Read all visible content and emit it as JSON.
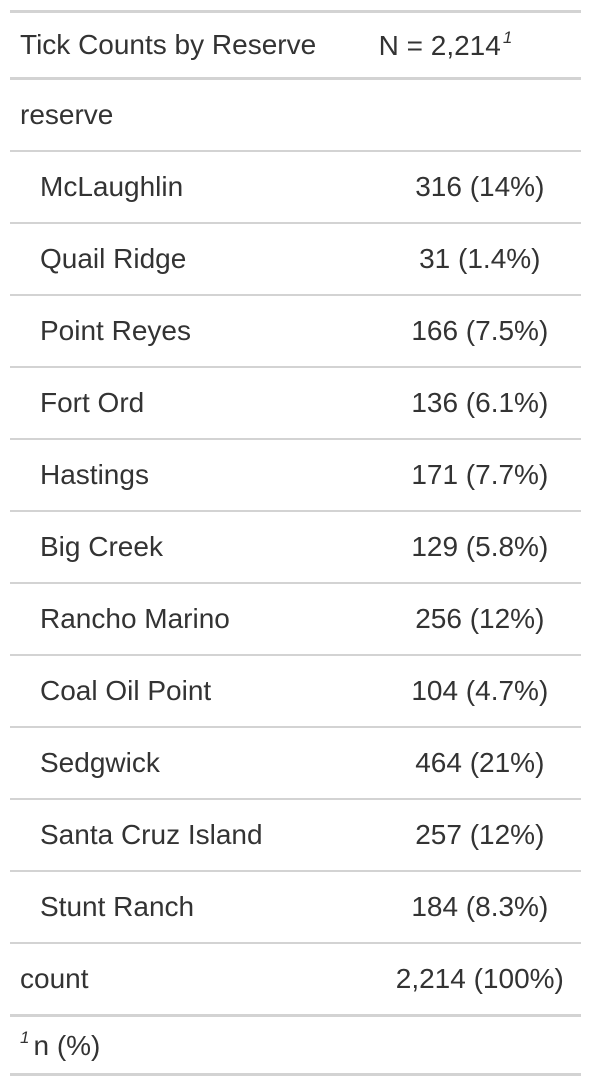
{
  "table": {
    "header": {
      "label": "Tick Counts by Reserve",
      "stat": "N = 2,214",
      "stat_footnote_mark": "1"
    },
    "group_label": "reserve",
    "rows": [
      {
        "label": "McLaughlin",
        "value": "316 (14%)"
      },
      {
        "label": "Quail Ridge",
        "value": "31 (1.4%)"
      },
      {
        "label": "Point Reyes",
        "value": "166 (7.5%)"
      },
      {
        "label": "Fort Ord",
        "value": "136 (6.1%)"
      },
      {
        "label": "Hastings",
        "value": "171 (7.7%)"
      },
      {
        "label": "Big Creek",
        "value": "129 (5.8%)"
      },
      {
        "label": "Rancho Marino",
        "value": "256 (12%)"
      },
      {
        "label": "Coal Oil Point",
        "value": "104 (4.7%)"
      },
      {
        "label": "Sedgwick",
        "value": "464 (21%)"
      },
      {
        "label": "Santa Cruz Island",
        "value": "257 (12%)"
      },
      {
        "label": "Stunt Ranch",
        "value": "184 (8.3%)"
      }
    ],
    "total": {
      "label": "count",
      "value": "2,214 (100%)"
    },
    "footnote": {
      "mark": "1",
      "text": "n (%)"
    }
  }
}
